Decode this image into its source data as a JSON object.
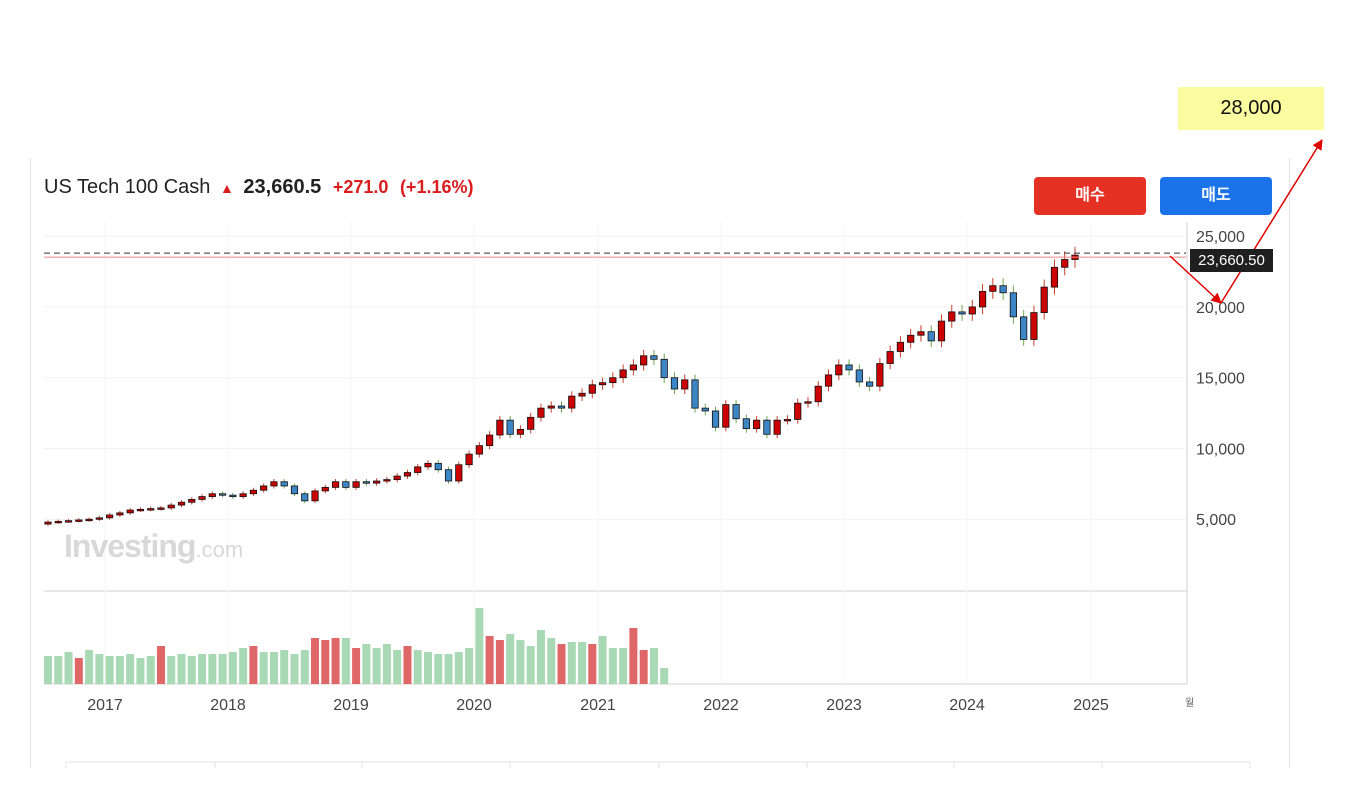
{
  "header": {
    "instrument": "US Tech 100 Cash",
    "price": "23,660.5",
    "change": "+271.0",
    "change_pct": "(+1.16%)",
    "direction_icon": "arrow-up-icon"
  },
  "buttons": {
    "buy": "매수",
    "sell": "매도"
  },
  "annotation": {
    "target": "28,000"
  },
  "last_price_label": "23,660.50",
  "watermark": {
    "brand": "Investing",
    "suffix": ".com"
  },
  "axis_extra": "월",
  "colors": {
    "up": "#cc0000",
    "down": "#3d86c6",
    "vol_up": "#a8d8b4",
    "vol_down": "#e06767",
    "buy": "#e53024",
    "sell": "#1a73e8",
    "annotation": "#e00000",
    "target_bg": "#fbfca0"
  },
  "chart_data": {
    "type": "candlestick",
    "title": "US Tech 100 Cash",
    "interval": "monthly",
    "y_ticks": [
      "5,000",
      "10,000",
      "15,000",
      "20,000",
      "25,000"
    ],
    "y_tick_values": [
      5000,
      10000,
      15000,
      20000,
      25000
    ],
    "ylim": [
      0,
      26000
    ],
    "x_ticks": [
      "2017",
      "2018",
      "2019",
      "2020",
      "2021",
      "2022",
      "2023",
      "2024",
      "2025"
    ],
    "start": "2016-08",
    "last_price": 23660.5,
    "target": 28000,
    "closes": [
      4800,
      4850,
      4900,
      4950,
      5000,
      5100,
      5300,
      5450,
      5650,
      5700,
      5750,
      5800,
      6000,
      6200,
      6400,
      6600,
      6800,
      6700,
      6600,
      6800,
      7050,
      7350,
      7650,
      7350,
      6800,
      6300,
      7000,
      7250,
      7650,
      7250,
      7650,
      7550,
      7700,
      7800,
      8050,
      8300,
      8700,
      8950,
      8500,
      7700,
      8850,
      9600,
      10200,
      10950,
      12000,
      11000,
      11350,
      12200,
      12850,
      13000,
      12850,
      13700,
      13900,
      14500,
      14650,
      15000,
      15550,
      15900,
      16550,
      16300,
      15000,
      14200,
      14850,
      12850,
      12650,
      11500,
      13100,
      12100,
      11400,
      12000,
      11000,
      12000,
      12050,
      13200,
      13300,
      14400,
      15200,
      15900,
      15550,
      14700,
      14400,
      16000,
      16850,
      17500,
      18000,
      18250,
      17600,
      19000,
      19650,
      19500,
      20000,
      21100,
      21500,
      21000,
      19300,
      17700,
      19600,
      21400,
      22800,
      23350,
      23660
    ]
  }
}
